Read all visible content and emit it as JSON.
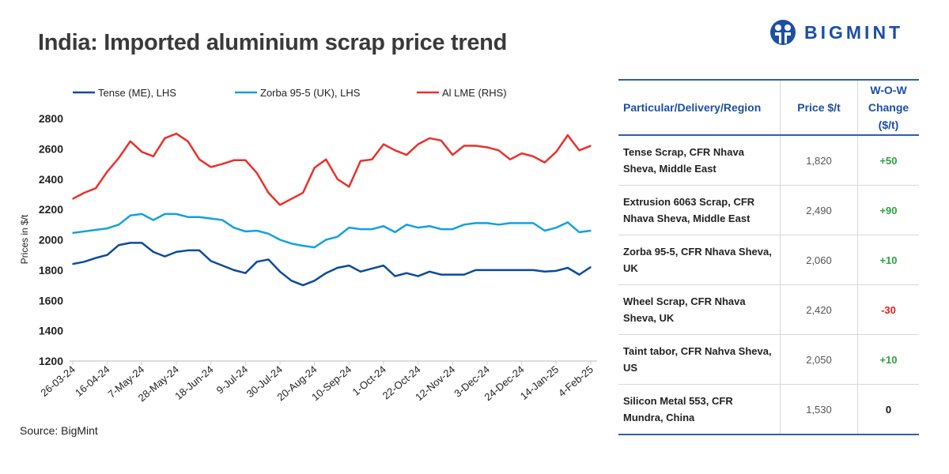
{
  "title": "India: Imported aluminium scrap price trend",
  "logo": {
    "text": "BIGMINT",
    "color": "#1d4fa3"
  },
  "source": "Source: BigMint",
  "chart_data": {
    "type": "line",
    "ylabel": "Prices in $/t",
    "ylim": [
      1200,
      2800
    ],
    "yticks": [
      1200,
      1400,
      1600,
      1800,
      2000,
      2200,
      2400,
      2600,
      2800
    ],
    "xticklabels": [
      "26-03-24",
      "16-04-24",
      "7-May-24",
      "28-May-24",
      "18-Jun-24",
      "9-Jul-24",
      "30-Jul-24",
      "20-Aug-24",
      "10-Sep-24",
      "1-Oct-24",
      "22-Oct-24",
      "12-Nov-24",
      "3-Dec-24",
      "24-Dec-24",
      "14-Jan-25",
      "4-Feb-25"
    ],
    "grid": false,
    "legend": "top",
    "series": [
      {
        "name": "Tense (ME), LHS",
        "color": "#0b4a9e",
        "values": [
          1840,
          1855,
          1880,
          1900,
          1965,
          1980,
          1980,
          1920,
          1890,
          1920,
          1930,
          1930,
          1860,
          1830,
          1800,
          1780,
          1855,
          1870,
          1790,
          1730,
          1700,
          1730,
          1780,
          1815,
          1830,
          1790,
          1810,
          1830,
          1760,
          1780,
          1760,
          1790,
          1770,
          1770,
          1770,
          1800,
          1800,
          1800,
          1800,
          1800,
          1800,
          1790,
          1795,
          1815,
          1770,
          1820
        ]
      },
      {
        "name": "Zorba 95-5 (UK), LHS",
        "color": "#12a0e0",
        "values": [
          2045,
          2055,
          2065,
          2075,
          2100,
          2160,
          2170,
          2130,
          2170,
          2170,
          2150,
          2150,
          2140,
          2130,
          2080,
          2055,
          2060,
          2040,
          2000,
          1975,
          1960,
          1950,
          2000,
          2020,
          2080,
          2070,
          2070,
          2090,
          2050,
          2100,
          2080,
          2090,
          2070,
          2070,
          2100,
          2110,
          2110,
          2100,
          2110,
          2110,
          2110,
          2060,
          2080,
          2115,
          2050,
          2060
        ]
      },
      {
        "name": "Al LME (RHS)",
        "color": "#e8312a",
        "values": [
          2270,
          2310,
          2340,
          2450,
          2540,
          2650,
          2580,
          2550,
          2670,
          2700,
          2650,
          2530,
          2480,
          2500,
          2525,
          2525,
          2440,
          2310,
          2230,
          2270,
          2310,
          2475,
          2530,
          2400,
          2350,
          2520,
          2530,
          2630,
          2590,
          2560,
          2630,
          2670,
          2655,
          2560,
          2620,
          2620,
          2610,
          2590,
          2530,
          2570,
          2550,
          2510,
          2580,
          2690,
          2590,
          2620
        ]
      }
    ]
  },
  "table": {
    "headers": [
      "Particular/Delivery/Region",
      "Price $/t",
      "W-O-W Change ($/t)"
    ],
    "rows": [
      {
        "item": "Tense Scrap, CFR Nhava Sheva, Middle East",
        "price": "1,820",
        "change": "+50"
      },
      {
        "item": "Extrusion 6063 Scrap, CFR Nhava Sheva, Middle East",
        "price": "2,490",
        "change": "+90"
      },
      {
        "item": "Zorba 95-5, CFR Nhava Sheva, UK",
        "price": "2,060",
        "change": "+10"
      },
      {
        "item": "Wheel Scrap, CFR Nhava Sheva, UK",
        "price": "2,420",
        "change": "-30"
      },
      {
        "item": "Taint tabor, CFR Nahva Sheva, US",
        "price": "2,050",
        "change": "+10"
      },
      {
        "item": "Silicon Metal 553, CFR Mundra, China",
        "price": "1,530",
        "change": "0"
      }
    ]
  }
}
